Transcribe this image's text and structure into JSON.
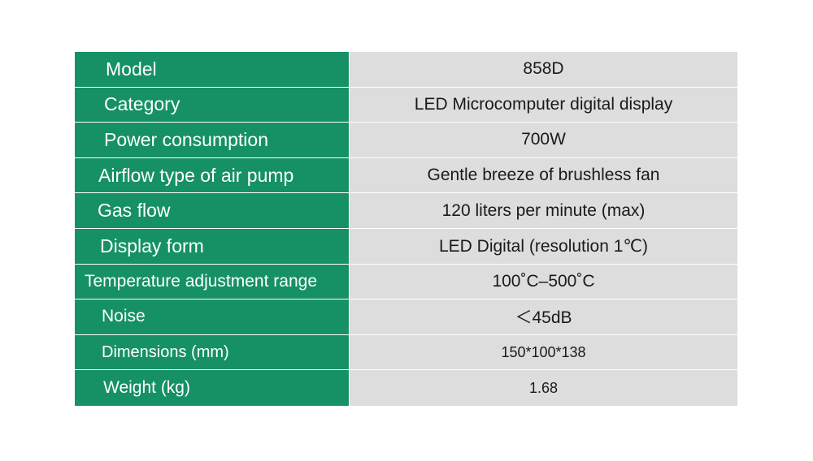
{
  "specs": [
    {
      "label": "Model",
      "value": "858D"
    },
    {
      "label": "Category",
      "value": "LED Microcomputer digital display"
    },
    {
      "label": "Power consumption",
      "value": "700W"
    },
    {
      "label": "Airflow type of air pump",
      "value": "Gentle breeze of brushless fan"
    },
    {
      "label": "Gas flow",
      "value": "120 liters per minute (max)"
    },
    {
      "label": "Display form",
      "value": "LED Digital (resolution 1℃)"
    },
    {
      "label": "Temperature adjustment range",
      "value": "100˚C–500˚C"
    },
    {
      "label": "Noise",
      "value": "＜45dB"
    },
    {
      "label": "Dimensions (mm)",
      "value": "150*100*138"
    },
    {
      "label": "Weight (kg)",
      "value": "1.68"
    }
  ],
  "colors": {
    "label_background": "#159165",
    "value_background": "#dddddd"
  }
}
